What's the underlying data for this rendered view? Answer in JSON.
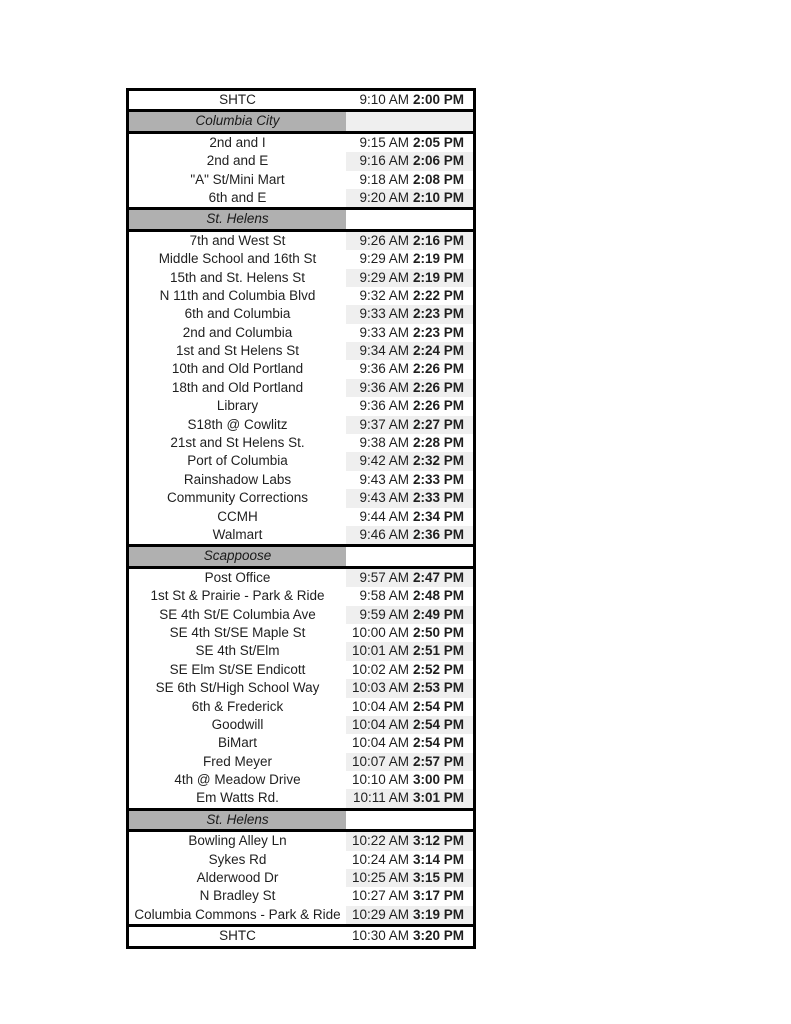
{
  "document": {
    "type": "bus-route-timetable"
  },
  "colors": {
    "section_header_bg": "#b0b0b0",
    "zebra_band_bg": "#efefef",
    "border": "#000000",
    "text": "#1f1f1f"
  },
  "schedule": {
    "rows": [
      {
        "type": "stop",
        "terminal": true,
        "name": "SHTC",
        "am": "9:10 AM",
        "pm": "2:00 PM"
      },
      {
        "type": "section",
        "name": "Columbia City"
      },
      {
        "type": "stop",
        "name": "2nd and I",
        "am": "9:15 AM",
        "pm": "2:05 PM"
      },
      {
        "type": "stop",
        "name": "2nd and E",
        "am": "9:16 AM",
        "pm": "2:06 PM"
      },
      {
        "type": "stop",
        "name": "\"A\" St/Mini Mart",
        "am": "9:18 AM",
        "pm": "2:08 PM"
      },
      {
        "type": "stop",
        "name": "6th and E",
        "am": "9:20 AM",
        "pm": "2:10 PM"
      },
      {
        "type": "section",
        "name": "St. Helens"
      },
      {
        "type": "stop",
        "name": "7th and West St",
        "am": "9:26 AM",
        "pm": "2:16 PM"
      },
      {
        "type": "stop",
        "name": "Middle School and 16th St",
        "am": "9:29 AM",
        "pm": "2:19 PM"
      },
      {
        "type": "stop",
        "name": "15th and St. Helens St",
        "am": "9:29 AM",
        "pm": "2:19 PM"
      },
      {
        "type": "stop",
        "name": "N 11th and Columbia Blvd",
        "am": "9:32 AM",
        "pm": "2:22 PM"
      },
      {
        "type": "stop",
        "name": "6th and Columbia",
        "am": "9:33 AM",
        "pm": "2:23 PM"
      },
      {
        "type": "stop",
        "name": "2nd and Columbia",
        "am": "9:33 AM",
        "pm": "2:23 PM"
      },
      {
        "type": "stop",
        "name": "1st and St Helens St",
        "am": "9:34 AM",
        "pm": "2:24 PM"
      },
      {
        "type": "stop",
        "name": "10th and Old Portland",
        "am": "9:36 AM",
        "pm": "2:26 PM"
      },
      {
        "type": "stop",
        "name": "18th and Old Portland",
        "am": "9:36 AM",
        "pm": "2:26 PM"
      },
      {
        "type": "stop",
        "name": "Library",
        "am": "9:36 AM",
        "pm": "2:26 PM"
      },
      {
        "type": "stop",
        "name": "S18th @ Cowlitz",
        "am": "9:37 AM",
        "pm": "2:27 PM"
      },
      {
        "type": "stop",
        "name": "21st and St Helens St.",
        "am": "9:38 AM",
        "pm": "2:28 PM"
      },
      {
        "type": "stop",
        "name": "Port of Columbia",
        "am": "9:42 AM",
        "pm": "2:32 PM"
      },
      {
        "type": "stop",
        "name": "Rainshadow Labs",
        "am": "9:43 AM",
        "pm": "2:33 PM"
      },
      {
        "type": "stop",
        "name": "Community Corrections",
        "am": "9:43 AM",
        "pm": "2:33 PM"
      },
      {
        "type": "stop",
        "name": "CCMH",
        "am": "9:44 AM",
        "pm": "2:34 PM"
      },
      {
        "type": "stop",
        "name": "Walmart",
        "am": "9:46 AM",
        "pm": "2:36 PM"
      },
      {
        "type": "section",
        "name": "Scappoose"
      },
      {
        "type": "stop",
        "name": "Post Office",
        "am": "9:57 AM",
        "pm": "2:47 PM"
      },
      {
        "type": "stop",
        "name": "1st St & Prairie - Park & Ride",
        "am": "9:58 AM",
        "pm": "2:48 PM"
      },
      {
        "type": "stop",
        "name": "SE 4th St/E Columbia Ave",
        "am": "9:59 AM",
        "pm": "2:49 PM"
      },
      {
        "type": "stop",
        "name": "SE 4th St/SE Maple St",
        "am": "10:00 AM",
        "pm": "2:50 PM"
      },
      {
        "type": "stop",
        "name": "SE 4th St/Elm",
        "am": "10:01 AM",
        "pm": "2:51 PM"
      },
      {
        "type": "stop",
        "name": "SE Elm St/SE Endicott",
        "am": "10:02 AM",
        "pm": "2:52 PM"
      },
      {
        "type": "stop",
        "name": "SE 6th St/High School Way",
        "am": "10:03 AM",
        "pm": "2:53 PM"
      },
      {
        "type": "stop",
        "name": "6th & Frederick",
        "am": "10:04 AM",
        "pm": "2:54 PM"
      },
      {
        "type": "stop",
        "name": "Goodwill",
        "am": "10:04 AM",
        "pm": "2:54 PM"
      },
      {
        "type": "stop",
        "name": "BiMart",
        "am": "10:04 AM",
        "pm": "2:54 PM"
      },
      {
        "type": "stop",
        "name": "Fred Meyer",
        "am": "10:07 AM",
        "pm": "2:57 PM"
      },
      {
        "type": "stop",
        "name": "4th @ Meadow Drive",
        "am": "10:10 AM",
        "pm": "3:00 PM"
      },
      {
        "type": "stop",
        "name": "Em Watts Rd.",
        "am": "10:11 AM",
        "pm": "3:01 PM"
      },
      {
        "type": "section",
        "name": "St. Helens"
      },
      {
        "type": "stop",
        "name": "Bowling Alley Ln",
        "am": "10:22 AM",
        "pm": "3:12 PM"
      },
      {
        "type": "stop",
        "name": "Sykes Rd",
        "am": "10:24 AM",
        "pm": "3:14 PM"
      },
      {
        "type": "stop",
        "name": "Alderwood Dr",
        "am": "10:25 AM",
        "pm": "3:15 PM"
      },
      {
        "type": "stop",
        "name": "N Bradley St",
        "am": "10:27 AM",
        "pm": "3:17 PM"
      },
      {
        "type": "stop",
        "name": "Columbia Commons - Park & Ride",
        "am": "10:29 AM",
        "pm": "3:19 PM"
      },
      {
        "type": "stop",
        "terminal": true,
        "name": "SHTC",
        "am": "10:30 AM",
        "pm": "3:20 PM"
      }
    ]
  }
}
